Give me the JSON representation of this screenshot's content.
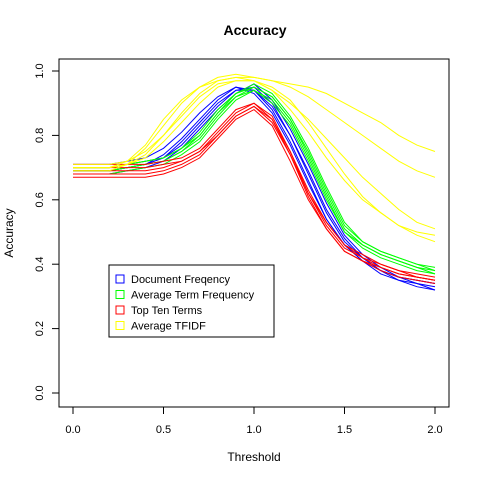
{
  "chart_data": {
    "type": "line",
    "title": "Accuracy",
    "xlabel": "Threshold",
    "ylabel": "Accuracy",
    "xlim": [
      0,
      2
    ],
    "ylim": [
      0,
      1
    ],
    "xticks": [
      0.0,
      0.5,
      1.0,
      1.5,
      2.0
    ],
    "xtick_labels": [
      "0.0",
      "0.5",
      "1.0",
      "1.5",
      "2.0"
    ],
    "yticks": [
      0.0,
      0.2,
      0.4,
      0.6,
      0.8,
      1.0
    ],
    "ytick_labels": [
      "0.0",
      "0.2",
      "0.4",
      "0.6",
      "0.8",
      "1.0"
    ],
    "grid": false,
    "legend_position": "lower-left",
    "x": [
      0.0,
      0.1,
      0.2,
      0.3,
      0.4,
      0.5,
      0.6,
      0.7,
      0.8,
      0.9,
      1.0,
      1.1,
      1.2,
      1.3,
      1.4,
      1.5,
      1.6,
      1.7,
      1.8,
      1.9,
      2.0
    ],
    "legend": [
      {
        "label": "Document Freqency",
        "color": "#0000ff"
      },
      {
        "label": "Average Term Frequency",
        "color": "#00ff00"
      },
      {
        "label": "Top Ten Terms",
        "color": "#ff0000"
      },
      {
        "label": "Average TFIDF",
        "color": "#ffff00"
      }
    ],
    "series": [
      {
        "group": "Document Freqency",
        "color": "#0000ff",
        "values": [
          0.69,
          0.69,
          0.69,
          0.7,
          0.71,
          0.74,
          0.79,
          0.85,
          0.91,
          0.95,
          0.94,
          0.88,
          0.78,
          0.66,
          0.54,
          0.46,
          0.41,
          0.37,
          0.35,
          0.34,
          0.32
        ]
      },
      {
        "group": "Document Freqency",
        "color": "#0000ff",
        "values": [
          0.7,
          0.7,
          0.7,
          0.71,
          0.72,
          0.73,
          0.77,
          0.83,
          0.89,
          0.94,
          0.95,
          0.9,
          0.8,
          0.69,
          0.57,
          0.48,
          0.42,
          0.38,
          0.36,
          0.35,
          0.34
        ]
      },
      {
        "group": "Document Freqency",
        "color": "#0000ff",
        "values": [
          0.68,
          0.68,
          0.68,
          0.69,
          0.7,
          0.72,
          0.76,
          0.82,
          0.88,
          0.93,
          0.96,
          0.91,
          0.82,
          0.71,
          0.59,
          0.49,
          0.43,
          0.39,
          0.36,
          0.34,
          0.33
        ]
      },
      {
        "group": "Document Freqency",
        "color": "#0000ff",
        "values": [
          0.71,
          0.71,
          0.71,
          0.72,
          0.73,
          0.76,
          0.81,
          0.87,
          0.92,
          0.95,
          0.93,
          0.87,
          0.77,
          0.65,
          0.54,
          0.46,
          0.41,
          0.38,
          0.36,
          0.35,
          0.34
        ]
      },
      {
        "group": "Document Freqency",
        "color": "#0000ff",
        "values": [
          0.69,
          0.69,
          0.69,
          0.7,
          0.71,
          0.73,
          0.78,
          0.84,
          0.9,
          0.94,
          0.94,
          0.89,
          0.8,
          0.68,
          0.56,
          0.47,
          0.42,
          0.38,
          0.35,
          0.33,
          0.32
        ]
      },
      {
        "group": "Average Term Frequency",
        "color": "#00ff00",
        "values": [
          0.69,
          0.69,
          0.69,
          0.7,
          0.71,
          0.72,
          0.75,
          0.79,
          0.86,
          0.92,
          0.95,
          0.92,
          0.85,
          0.74,
          0.62,
          0.51,
          0.46,
          0.43,
          0.41,
          0.39,
          0.38
        ]
      },
      {
        "group": "Average Term Frequency",
        "color": "#00ff00",
        "values": [
          0.7,
          0.7,
          0.7,
          0.71,
          0.72,
          0.73,
          0.76,
          0.8,
          0.87,
          0.93,
          0.96,
          0.93,
          0.86,
          0.76,
          0.64,
          0.53,
          0.47,
          0.44,
          0.42,
          0.4,
          0.39
        ]
      },
      {
        "group": "Average Term Frequency",
        "color": "#00ff00",
        "values": [
          0.68,
          0.68,
          0.68,
          0.69,
          0.7,
          0.71,
          0.74,
          0.78,
          0.85,
          0.91,
          0.94,
          0.91,
          0.84,
          0.73,
          0.61,
          0.5,
          0.45,
          0.42,
          0.4,
          0.38,
          0.37
        ]
      },
      {
        "group": "Average Term Frequency",
        "color": "#00ff00",
        "values": [
          0.69,
          0.69,
          0.69,
          0.7,
          0.71,
          0.72,
          0.75,
          0.8,
          0.87,
          0.92,
          0.94,
          0.9,
          0.83,
          0.72,
          0.6,
          0.5,
          0.46,
          0.43,
          0.41,
          0.39,
          0.37
        ]
      },
      {
        "group": "Average Term Frequency",
        "color": "#00ff00",
        "values": [
          0.7,
          0.7,
          0.7,
          0.71,
          0.72,
          0.73,
          0.76,
          0.81,
          0.88,
          0.93,
          0.95,
          0.92,
          0.85,
          0.75,
          0.63,
          0.52,
          0.47,
          0.44,
          0.42,
          0.4,
          0.38
        ]
      },
      {
        "group": "Top Ten Terms",
        "color": "#ff0000",
        "values": [
          0.7,
          0.7,
          0.7,
          0.7,
          0.7,
          0.71,
          0.72,
          0.75,
          0.81,
          0.87,
          0.9,
          0.86,
          0.75,
          0.62,
          0.52,
          0.45,
          0.42,
          0.4,
          0.38,
          0.37,
          0.36
        ]
      },
      {
        "group": "Top Ten Terms",
        "color": "#ff0000",
        "values": [
          0.71,
          0.71,
          0.71,
          0.71,
          0.71,
          0.72,
          0.73,
          0.76,
          0.82,
          0.88,
          0.9,
          0.85,
          0.74,
          0.61,
          0.51,
          0.44,
          0.41,
          0.39,
          0.37,
          0.36,
          0.35
        ]
      },
      {
        "group": "Top Ten Terms",
        "color": "#ff0000",
        "values": [
          0.68,
          0.68,
          0.68,
          0.68,
          0.68,
          0.69,
          0.71,
          0.74,
          0.8,
          0.86,
          0.89,
          0.84,
          0.74,
          0.62,
          0.53,
          0.46,
          0.43,
          0.4,
          0.38,
          0.36,
          0.35
        ]
      },
      {
        "group": "Top Ten Terms",
        "color": "#ff0000",
        "values": [
          0.67,
          0.67,
          0.67,
          0.67,
          0.67,
          0.68,
          0.7,
          0.73,
          0.79,
          0.85,
          0.88,
          0.83,
          0.72,
          0.6,
          0.51,
          0.44,
          0.41,
          0.38,
          0.36,
          0.35,
          0.34
        ]
      },
      {
        "group": "Top Ten Terms",
        "color": "#ff0000",
        "values": [
          0.69,
          0.69,
          0.69,
          0.69,
          0.69,
          0.7,
          0.72,
          0.75,
          0.8,
          0.86,
          0.89,
          0.85,
          0.75,
          0.63,
          0.53,
          0.46,
          0.42,
          0.39,
          0.37,
          0.36,
          0.35
        ]
      },
      {
        "group": "Average TFIDF",
        "color": "#ffff00",
        "values": [
          0.7,
          0.7,
          0.7,
          0.71,
          0.74,
          0.8,
          0.87,
          0.93,
          0.97,
          0.98,
          0.98,
          0.97,
          0.96,
          0.95,
          0.93,
          0.9,
          0.87,
          0.84,
          0.8,
          0.77,
          0.75
        ]
      },
      {
        "group": "Average TFIDF",
        "color": "#ffff00",
        "values": [
          0.69,
          0.69,
          0.69,
          0.71,
          0.76,
          0.83,
          0.9,
          0.95,
          0.98,
          0.99,
          0.98,
          0.97,
          0.95,
          0.92,
          0.88,
          0.84,
          0.8,
          0.76,
          0.72,
          0.69,
          0.67
        ]
      },
      {
        "group": "Average TFIDF",
        "color": "#ffff00",
        "values": [
          0.7,
          0.7,
          0.7,
          0.72,
          0.77,
          0.85,
          0.91,
          0.95,
          0.97,
          0.98,
          0.97,
          0.94,
          0.9,
          0.85,
          0.79,
          0.73,
          0.67,
          0.62,
          0.57,
          0.53,
          0.51
        ]
      },
      {
        "group": "Average TFIDF",
        "color": "#ffff00",
        "values": [
          0.71,
          0.71,
          0.71,
          0.72,
          0.75,
          0.8,
          0.86,
          0.92,
          0.96,
          0.97,
          0.97,
          0.94,
          0.88,
          0.81,
          0.73,
          0.66,
          0.6,
          0.56,
          0.52,
          0.5,
          0.49
        ]
      },
      {
        "group": "Average TFIDF",
        "color": "#ffff00",
        "values": [
          0.7,
          0.7,
          0.7,
          0.71,
          0.73,
          0.78,
          0.84,
          0.9,
          0.95,
          0.97,
          0.97,
          0.95,
          0.91,
          0.84,
          0.76,
          0.68,
          0.61,
          0.56,
          0.52,
          0.49,
          0.47
        ]
      }
    ]
  }
}
